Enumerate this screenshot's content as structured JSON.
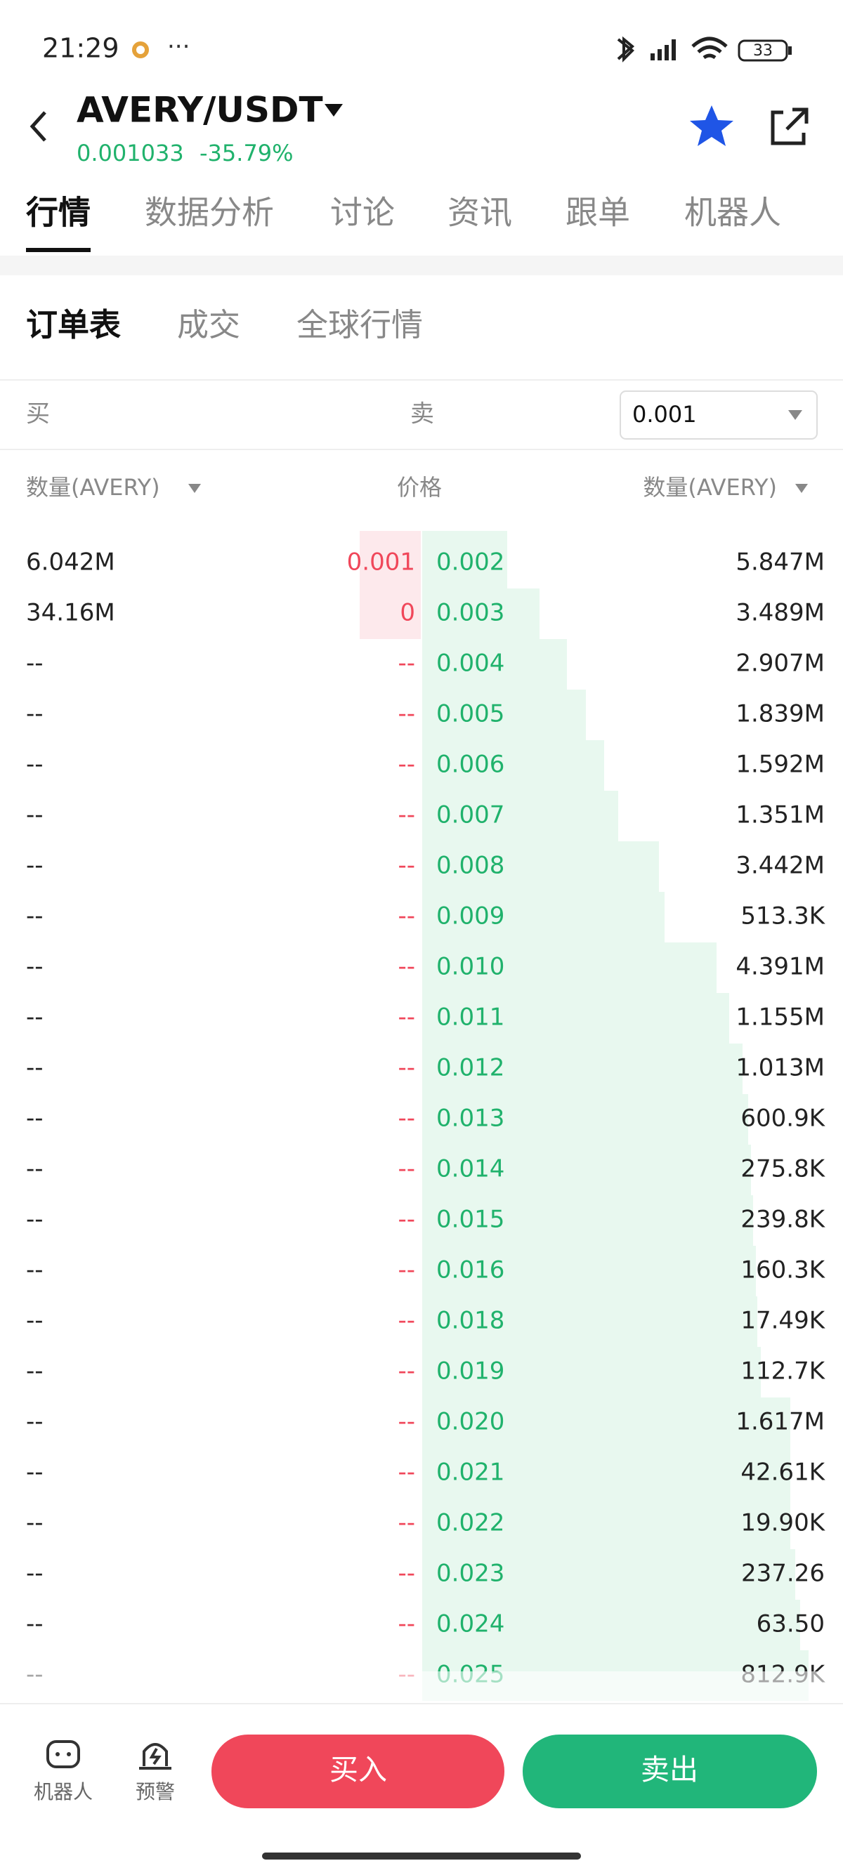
{
  "status_bar": {
    "time": "21:29",
    "battery": "33"
  },
  "header": {
    "pair": "AVERY/USDT",
    "price": "0.001033",
    "change": "-35.79%"
  },
  "tabs": [
    "行情",
    "数据分析",
    "讨论",
    "资讯",
    "跟单",
    "机器人"
  ],
  "subtabs": [
    "订单表",
    "成交",
    "全球行情"
  ],
  "side_labels": {
    "buy": "买",
    "sell": "卖"
  },
  "precision": "0.001",
  "columns": {
    "bid_qty": "数量(AVERY)",
    "price": "价格",
    "ask_qty": "数量(AVERY)"
  },
  "rows": [
    [
      "6.042M",
      "0.001",
      "0.002",
      "5.847M"
    ],
    [
      "34.16M",
      "0",
      "0.003",
      "3.489M"
    ],
    [
      "--",
      "--",
      "0.004",
      "2.907M"
    ],
    [
      "--",
      "--",
      "0.005",
      "1.839M"
    ],
    [
      "--",
      "--",
      "0.006",
      "1.592M"
    ],
    [
      "--",
      "--",
      "0.007",
      "1.351M"
    ],
    [
      "--",
      "--",
      "0.008",
      "3.442M"
    ],
    [
      "--",
      "--",
      "0.009",
      "513.3K"
    ],
    [
      "--",
      "--",
      "0.010",
      "4.391M"
    ],
    [
      "--",
      "--",
      "0.011",
      "1.155M"
    ],
    [
      "--",
      "--",
      "0.012",
      "1.013M"
    ],
    [
      "--",
      "--",
      "0.013",
      "600.9K"
    ],
    [
      "--",
      "--",
      "0.014",
      "275.8K"
    ],
    [
      "--",
      "--",
      "0.015",
      "239.8K"
    ],
    [
      "--",
      "--",
      "0.016",
      "160.3K"
    ],
    [
      "--",
      "--",
      "0.018",
      "17.49K"
    ],
    [
      "--",
      "--",
      "0.019",
      "112.7K"
    ],
    [
      "--",
      "--",
      "0.020",
      "1.617M"
    ],
    [
      "--",
      "--",
      "0.021",
      "42.61K"
    ],
    [
      "--",
      "--",
      "0.022",
      "19.90K"
    ],
    [
      "--",
      "--",
      "0.023",
      "237.26"
    ],
    [
      "--",
      "--",
      "0.024",
      "63.50"
    ],
    [
      "--",
      "--",
      "0.025",
      "812.9K"
    ]
  ],
  "bottom": {
    "robot": "机器人",
    "alert": "预警",
    "buy": "买入",
    "sell": "卖出"
  }
}
